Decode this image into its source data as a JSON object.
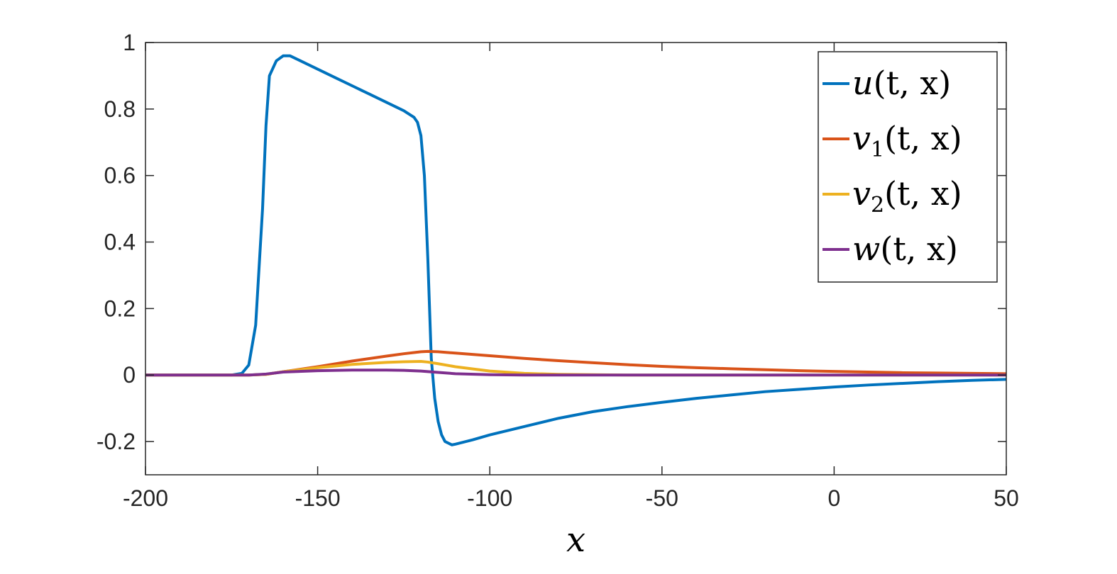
{
  "chart_data": {
    "type": "line",
    "xlabel": "x",
    "ylabel": "",
    "title": "",
    "xlim": [
      -200,
      50
    ],
    "ylim": [
      -0.3,
      1
    ],
    "xticks": [
      -200,
      -150,
      -100,
      -50,
      0,
      50
    ],
    "xtick_labels": [
      "-200",
      "-150",
      "-100",
      "-50",
      "0",
      "50"
    ],
    "yticks": [
      -0.2,
      0,
      0.2,
      0.4,
      0.6,
      0.8,
      1
    ],
    "ytick_labels": [
      "-0.2",
      "0",
      "0.2",
      "0.4",
      "0.6",
      "0.8",
      "1"
    ],
    "grid": false,
    "legend_position": "top-right",
    "series": [
      {
        "name": "u(t,x)",
        "legend_main": "u",
        "legend_sub": "",
        "legend_args": "(t, x)",
        "color": "#0072BD",
        "x": [
          -200,
          -180,
          -175,
          -172,
          -170,
          -168,
          -166,
          -165,
          -164,
          -162,
          -160,
          -158,
          -155,
          -150,
          -145,
          -140,
          -135,
          -130,
          -125,
          -122,
          -121,
          -120,
          -119,
          -118,
          -117,
          -116,
          -115,
          -114,
          -113,
          -112,
          -111,
          -110,
          -105,
          -100,
          -90,
          -80,
          -70,
          -60,
          -50,
          -40,
          -30,
          -20,
          -10,
          0,
          10,
          20,
          30,
          40,
          50
        ],
        "y": [
          0,
          0,
          0,
          0.005,
          0.03,
          0.15,
          0.5,
          0.75,
          0.9,
          0.945,
          0.96,
          0.96,
          0.945,
          0.92,
          0.895,
          0.87,
          0.845,
          0.82,
          0.795,
          0.775,
          0.76,
          0.72,
          0.6,
          0.35,
          0.05,
          -0.07,
          -0.14,
          -0.18,
          -0.2,
          -0.205,
          -0.21,
          -0.208,
          -0.195,
          -0.18,
          -0.155,
          -0.13,
          -0.11,
          -0.095,
          -0.082,
          -0.07,
          -0.06,
          -0.05,
          -0.043,
          -0.036,
          -0.03,
          -0.025,
          -0.02,
          -0.016,
          -0.013
        ]
      },
      {
        "name": "v1(t,x)",
        "legend_main": "v",
        "legend_sub": "1",
        "legend_args": "(t, x)",
        "color": "#D95319",
        "x": [
          -200,
          -175,
          -170,
          -165,
          -160,
          -150,
          -140,
          -130,
          -125,
          -120,
          -118,
          -115,
          -110,
          -100,
          -90,
          -80,
          -70,
          -60,
          -50,
          -40,
          -30,
          -20,
          -10,
          0,
          10,
          20,
          30,
          40,
          50
        ],
        "y": [
          0,
          0,
          0,
          0.002,
          0.01,
          0.025,
          0.042,
          0.057,
          0.064,
          0.07,
          0.071,
          0.07,
          0.066,
          0.058,
          0.05,
          0.043,
          0.037,
          0.031,
          0.026,
          0.022,
          0.019,
          0.016,
          0.013,
          0.011,
          0.009,
          0.007,
          0.006,
          0.005,
          0.004
        ]
      },
      {
        "name": "v2(t,x)",
        "legend_main": "v",
        "legend_sub": "2",
        "legend_args": "(t, x)",
        "color": "#EDB120",
        "x": [
          -200,
          -175,
          -170,
          -165,
          -160,
          -150,
          -140,
          -130,
          -125,
          -120,
          -118,
          -115,
          -110,
          -100,
          -90,
          -80,
          -70,
          -60,
          -50,
          0,
          50
        ],
        "y": [
          0,
          0,
          0,
          0.002,
          0.01,
          0.022,
          0.032,
          0.038,
          0.04,
          0.041,
          0.039,
          0.034,
          0.025,
          0.012,
          0.005,
          0.002,
          0.001,
          0,
          0,
          0,
          0
        ]
      },
      {
        "name": "w(t,x)",
        "legend_main": "w",
        "legend_sub": "",
        "legend_args": "(t, x)",
        "color": "#7E2F8E",
        "x": [
          -200,
          -175,
          -170,
          -165,
          -160,
          -150,
          -140,
          -130,
          -125,
          -120,
          -115,
          -110,
          -100,
          -90,
          -50,
          0,
          50
        ],
        "y": [
          0,
          0,
          0,
          0.003,
          0.009,
          0.013,
          0.015,
          0.015,
          0.014,
          0.012,
          0.008,
          0.004,
          0.001,
          0,
          0,
          0,
          0
        ]
      }
    ]
  }
}
